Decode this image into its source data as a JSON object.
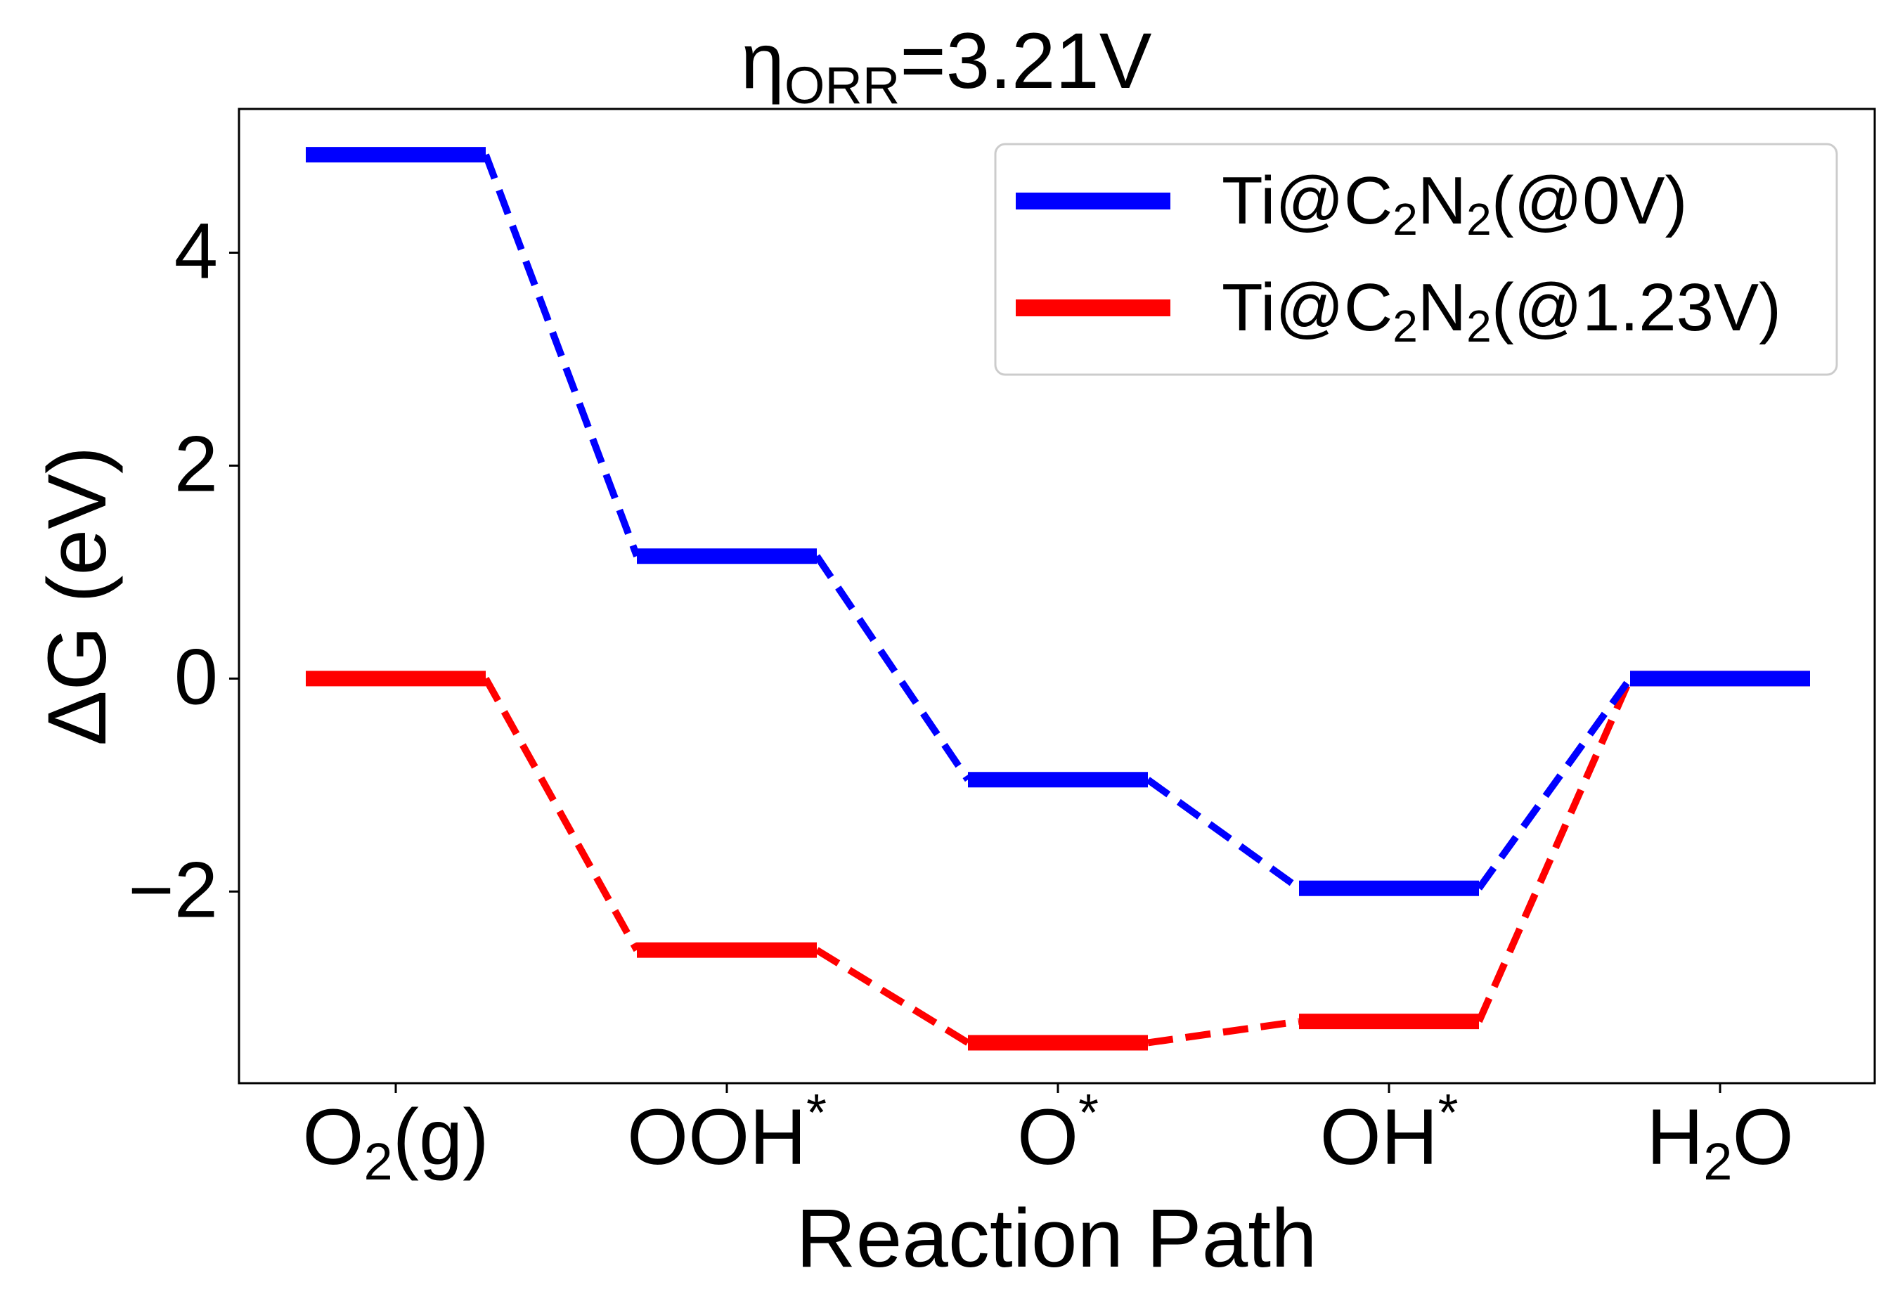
{
  "chart_data": {
    "type": "line",
    "title_main": "η",
    "title_sub": "ORR",
    "title_rest": "=3.21V",
    "xlabel": "Reaction Path",
    "ylabel": "ΔG (eV)",
    "ylim": [
      -3.8,
      5.35
    ],
    "yticks": [
      4,
      2,
      0,
      -2
    ],
    "ytick_labels": [
      "4",
      "2",
      "0",
      "−2"
    ],
    "categories": [
      {
        "main": "O",
        "sub": "2",
        "tail": "(g)",
        "sup": ""
      },
      {
        "main": "OOH",
        "sub": "",
        "tail": "",
        "sup": "*"
      },
      {
        "main": "O",
        "sub": "",
        "tail": "",
        "sup": "*"
      },
      {
        "main": "OH",
        "sub": "",
        "tail": "",
        "sup": "*"
      },
      {
        "main": "H",
        "sub": "2",
        "tail": "O",
        "sup": ""
      }
    ],
    "grid": false,
    "legend_position": "top-right",
    "series": [
      {
        "name_pre": "Ti@C",
        "name_sub1": "2",
        "name_mid": "N",
        "name_sub2": "2",
        "name_post": "(@0V)",
        "color": "#0000ff",
        "values": [
          4.92,
          1.15,
          -0.95,
          -1.97,
          0.0
        ]
      },
      {
        "name_pre": "Ti@C",
        "name_sub1": "2",
        "name_mid": "N",
        "name_sub2": "2",
        "name_post": "(@1.23V)",
        "color": "#ff0000",
        "values": [
          0.0,
          -2.55,
          -3.42,
          -3.22,
          0.0
        ]
      }
    ]
  }
}
